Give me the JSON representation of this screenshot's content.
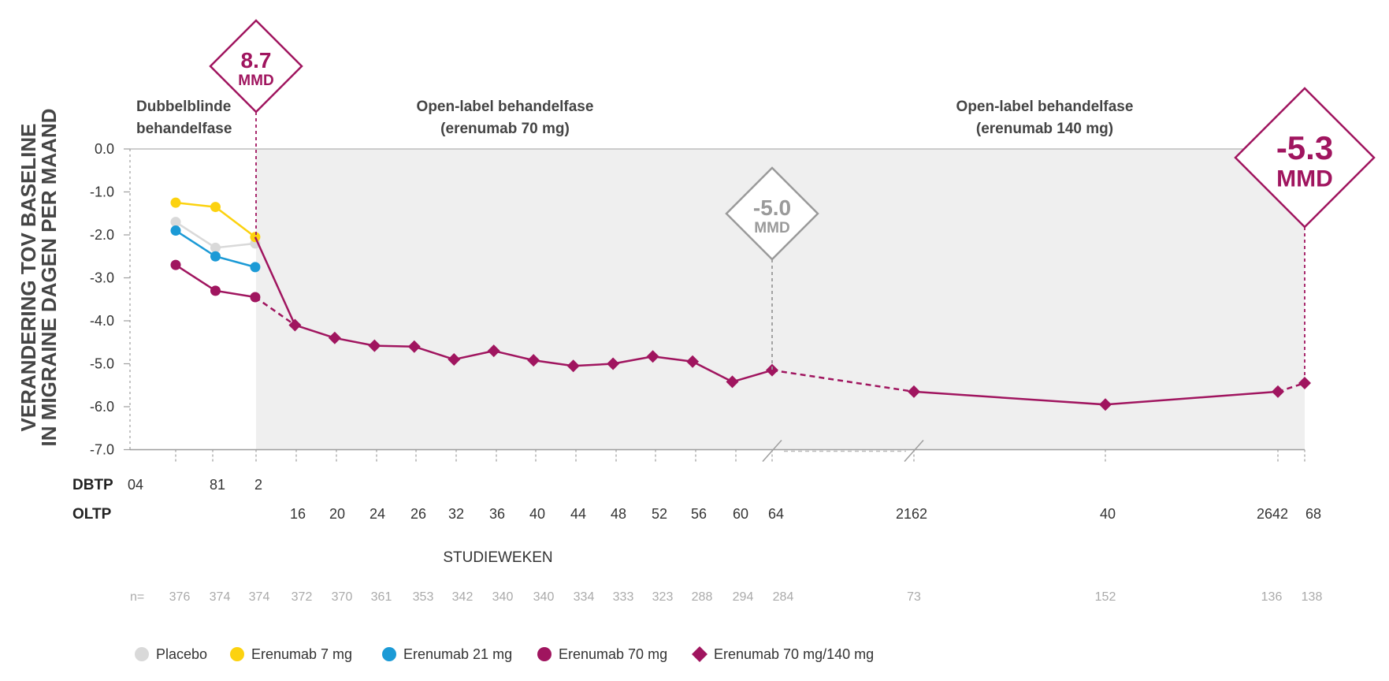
{
  "chart_data": {
    "type": "line",
    "ylabel_line1": "VERANDERING TOV BASELINE",
    "ylabel_line2": "IN MIGRAINE DAGEN PER MAAND",
    "xlabel": "STUDIEWEKEN",
    "ylim": [
      -7.0,
      0.0
    ],
    "yticks": [
      "0.0",
      "-1.0",
      "-2.0",
      "-3.0",
      "-4.0",
      "-5.0",
      "-6.0",
      "-7.0"
    ],
    "phases": [
      {
        "line1": "Dubbelblinde",
        "line2": "behandelfase"
      },
      {
        "line1": "Open-label behandelfase",
        "line2": "(erenumab 70 mg)"
      },
      {
        "line1": "Open-label behandelfase",
        "line2": "(erenumab 140 mg)"
      }
    ],
    "dbtp_label": "DBTP",
    "oltp_label": "OLTP",
    "dbtp_ticks": [
      "04",
      "81",
      "2"
    ],
    "oltp_ticks": [
      "16",
      "20",
      "24",
      "26",
      "32",
      "36",
      "40",
      "44",
      "48",
      "52",
      "56",
      "60",
      "64",
      "2162",
      "40",
      "2642",
      "68"
    ],
    "n_label": "n=",
    "n_values": [
      "376",
      "374",
      "374",
      "372",
      "370",
      "361",
      "353",
      "342",
      "340",
      "340",
      "334",
      "333",
      "323",
      "288",
      "294",
      "284",
      "73",
      "152",
      "136",
      "138"
    ],
    "series": [
      {
        "name": "Placebo",
        "color": "#d9d9d9",
        "marker": "circle",
        "x": [
          4,
          8,
          12
        ],
        "y": [
          -1.7,
          -2.3,
          -2.2
        ]
      },
      {
        "name": "Erenumab 7 mg",
        "color": "#fcd20f",
        "marker": "circle",
        "x": [
          4,
          8,
          12
        ],
        "y": [
          -1.25,
          -1.35,
          -2.05
        ]
      },
      {
        "name": "Erenumab 21 mg",
        "color": "#1b9ad6",
        "marker": "circle",
        "x": [
          4,
          8,
          12
        ],
        "y": [
          -1.9,
          -2.5,
          -2.75
        ]
      },
      {
        "name": "Erenumab 70 mg",
        "color": "#a0155f",
        "marker": "circle",
        "x": [
          4,
          8,
          12
        ],
        "y": [
          -2.7,
          -3.3,
          -3.45
        ]
      },
      {
        "name": "Erenumab 70 mg/140 mg",
        "color": "#a0155f",
        "marker": "diamond",
        "x": [
          12,
          16,
          20,
          24,
          28,
          32,
          36,
          40,
          44,
          48,
          52,
          56,
          60,
          64,
          78,
          97,
          122,
          124
        ],
        "y": [
          -2.05,
          -4.1,
          -4.4,
          -4.58,
          -4.6,
          -4.9,
          -4.7,
          -4.92,
          -5.05,
          -5.0,
          -4.83,
          -4.95,
          -5.42,
          -5.15,
          -5.65,
          -5.95,
          -5.65,
          -5.45
        ],
        "markers_from_index": 1
      }
    ],
    "callouts": [
      {
        "value": "8.7",
        "unit": "MMD",
        "color": "#a0155f"
      },
      {
        "value": "-5.0",
        "unit": "MMD",
        "color": "#9a9a9a"
      },
      {
        "value": "-5.3",
        "unit": "MMD",
        "color": "#a0155f"
      }
    ]
  }
}
